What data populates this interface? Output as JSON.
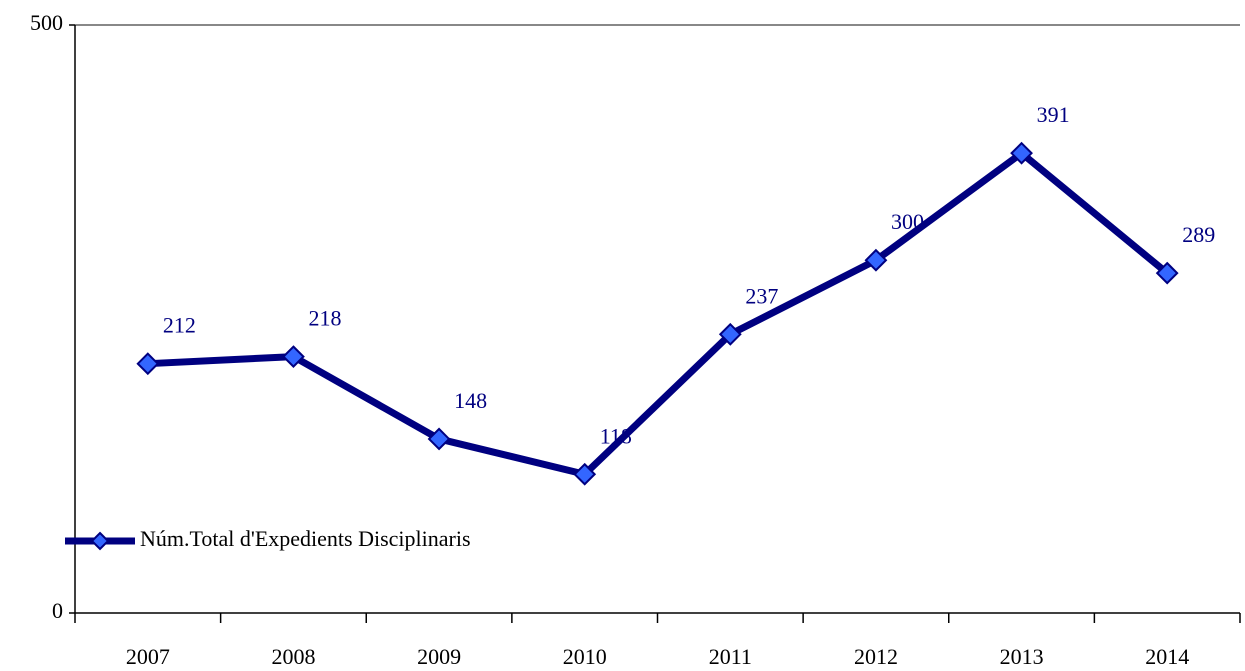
{
  "chart_data": {
    "type": "line",
    "categories": [
      "2007",
      "2008",
      "2009",
      "2010",
      "2011",
      "2012",
      "2013",
      "2014"
    ],
    "series": [
      {
        "name": "Núm.Total d'Expedients Disciplinaris",
        "color": "#000080",
        "marker_color": "#3366ff",
        "values": [
          212,
          218,
          148,
          118,
          237,
          300,
          391,
          289
        ]
      }
    ],
    "ylim": [
      0,
      500
    ],
    "yticks": [
      0,
      500
    ],
    "grid": true,
    "legend": "lower left"
  }
}
